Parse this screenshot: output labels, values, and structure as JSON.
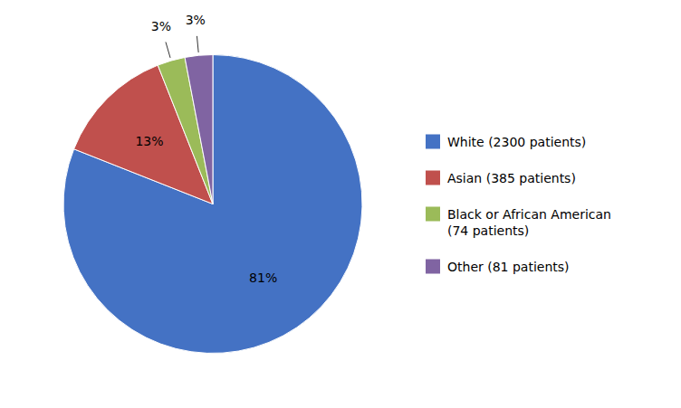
{
  "chart_data": {
    "type": "pie",
    "categories": [
      "White (2300 patients)",
      "Asian (385 patients)",
      "Black or African American\n(74 patients)",
      "Other (81 patients)"
    ],
    "values": [
      81,
      13,
      3,
      3
    ],
    "value_labels": [
      "81%",
      "13%",
      "3%",
      "3%"
    ],
    "data_labels": true,
    "colors": [
      "#4472C4",
      "#C0504D",
      "#9BBB59",
      "#8064A2"
    ],
    "legend": "right"
  }
}
